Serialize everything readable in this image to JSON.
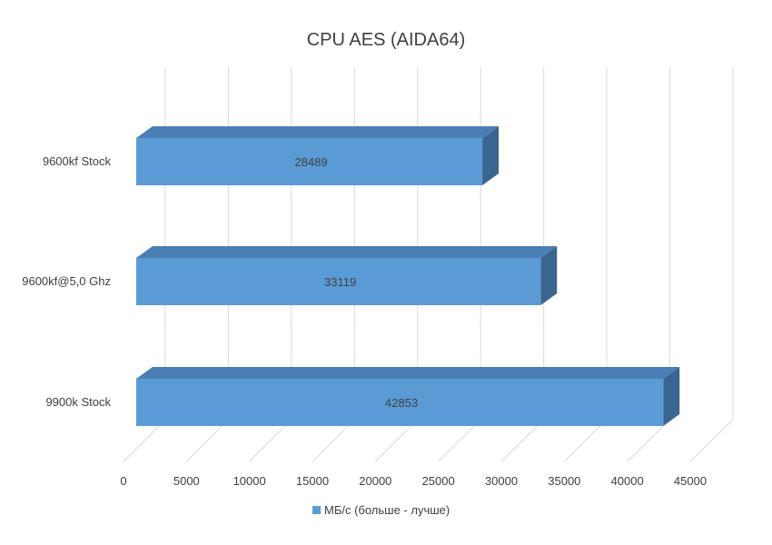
{
  "chart_data": {
    "type": "bar",
    "orientation": "horizontal",
    "style": "3d-clustered",
    "title": "CPU AES (AIDA64)",
    "categories": [
      "9600kf Stock",
      "9600kf@5,0 Ghz",
      "9900k Stock"
    ],
    "series": [
      {
        "name": "МБ/с (больше - лучше)",
        "values": [
          28489,
          33119,
          42853
        ],
        "color": "#5b9bd5",
        "top_color": "#4a7eb4",
        "side_color": "#3a6590"
      }
    ],
    "xlim": [
      0,
      45000
    ],
    "x_ticks": [
      0,
      5000,
      10000,
      15000,
      20000,
      25000,
      30000,
      35000,
      40000,
      45000
    ],
    "x_tick_labels": [
      "0",
      "5000",
      "10000",
      "15000",
      "20000",
      "25000",
      "30000",
      "35000",
      "40000",
      "45000"
    ],
    "grid": true,
    "legend_position": "bottom",
    "data_labels": true
  }
}
